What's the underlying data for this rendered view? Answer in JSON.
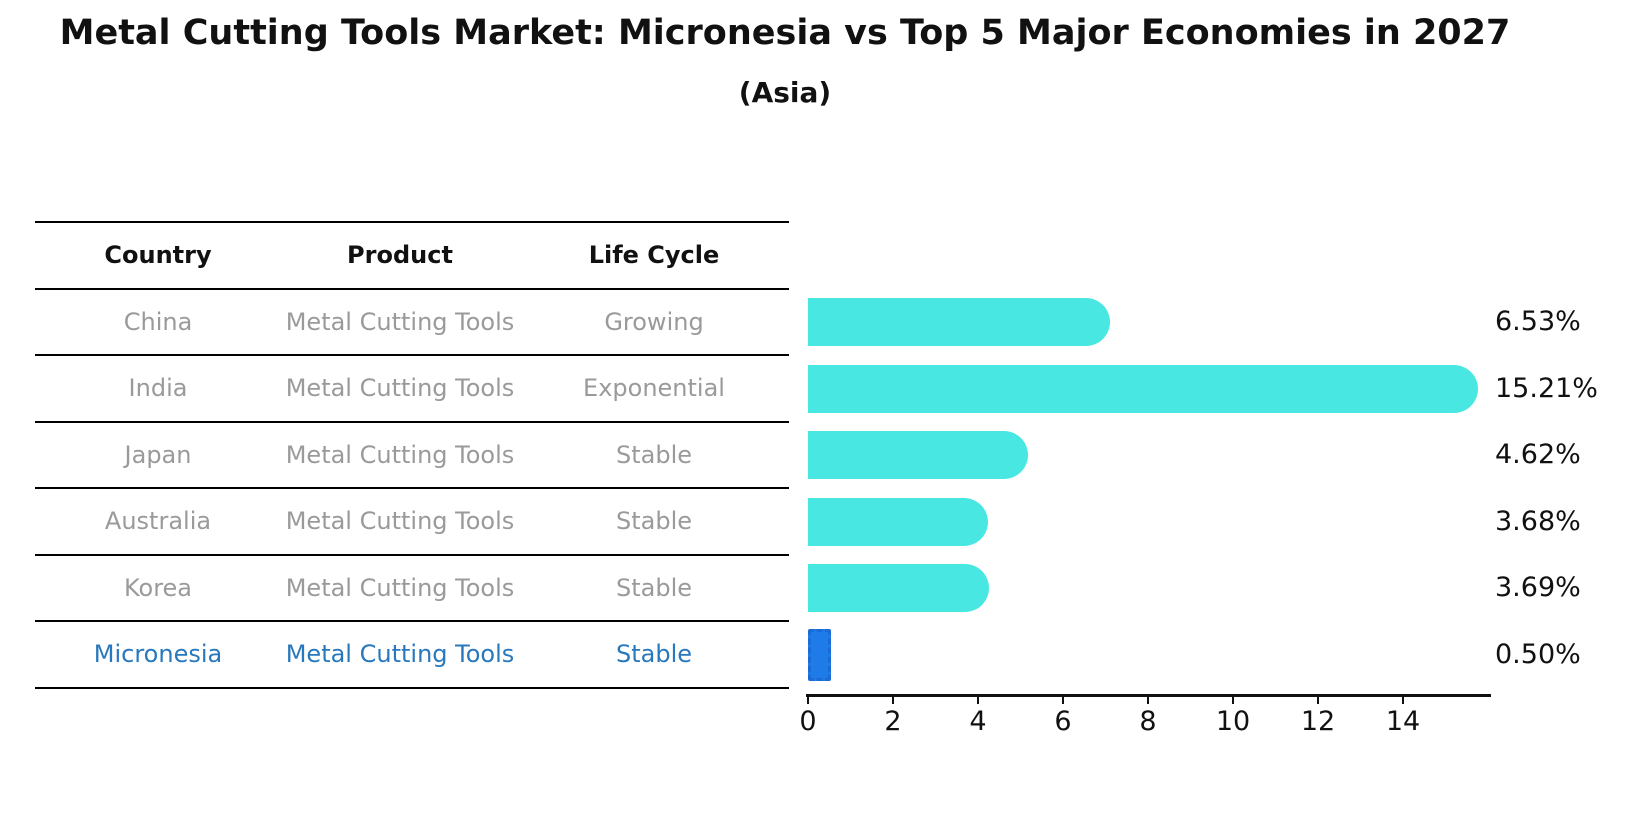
{
  "title": "Metal Cutting Tools Market: Micronesia vs Top 5 Major Economies in 2027",
  "subtitle": "(Asia)",
  "table": {
    "headers": [
      "Country",
      "Product",
      "Life Cycle"
    ],
    "rows": [
      {
        "country": "China",
        "product": "Metal Cutting Tools",
        "life_cycle": "Growing",
        "highlight": false
      },
      {
        "country": "India",
        "product": "Metal Cutting Tools",
        "life_cycle": "Exponential",
        "highlight": false
      },
      {
        "country": "Japan",
        "product": "Metal Cutting Tools",
        "life_cycle": "Stable",
        "highlight": false
      },
      {
        "country": "Australia",
        "product": "Metal Cutting Tools",
        "life_cycle": "Stable",
        "highlight": false
      },
      {
        "country": "Korea",
        "product": "Metal Cutting Tools",
        "life_cycle": "Stable",
        "highlight": false
      },
      {
        "country": "Micronesia",
        "product": "Metal Cutting Tools",
        "life_cycle": "Stable",
        "highlight": true
      }
    ]
  },
  "chart_data": {
    "type": "bar",
    "orientation": "horizontal",
    "categories": [
      "China",
      "India",
      "Japan",
      "Australia",
      "Korea",
      "Micronesia"
    ],
    "values": [
      6.53,
      15.21,
      4.62,
      3.68,
      3.69,
      0.5
    ],
    "value_labels": [
      "6.53%",
      "15.21%",
      "4.62%",
      "3.68%",
      "3.69%",
      "0.50%"
    ],
    "highlight_index": 5,
    "xlim": [
      0,
      16
    ],
    "xticks": [
      0,
      2,
      4,
      6,
      8,
      10,
      12,
      14
    ],
    "grid": false,
    "legend": false,
    "bar_color": "#49E7E1",
    "highlight_bar_color": "#1E7BE8",
    "highlight_text_color": "#2878BE",
    "label_color": "#111111"
  }
}
